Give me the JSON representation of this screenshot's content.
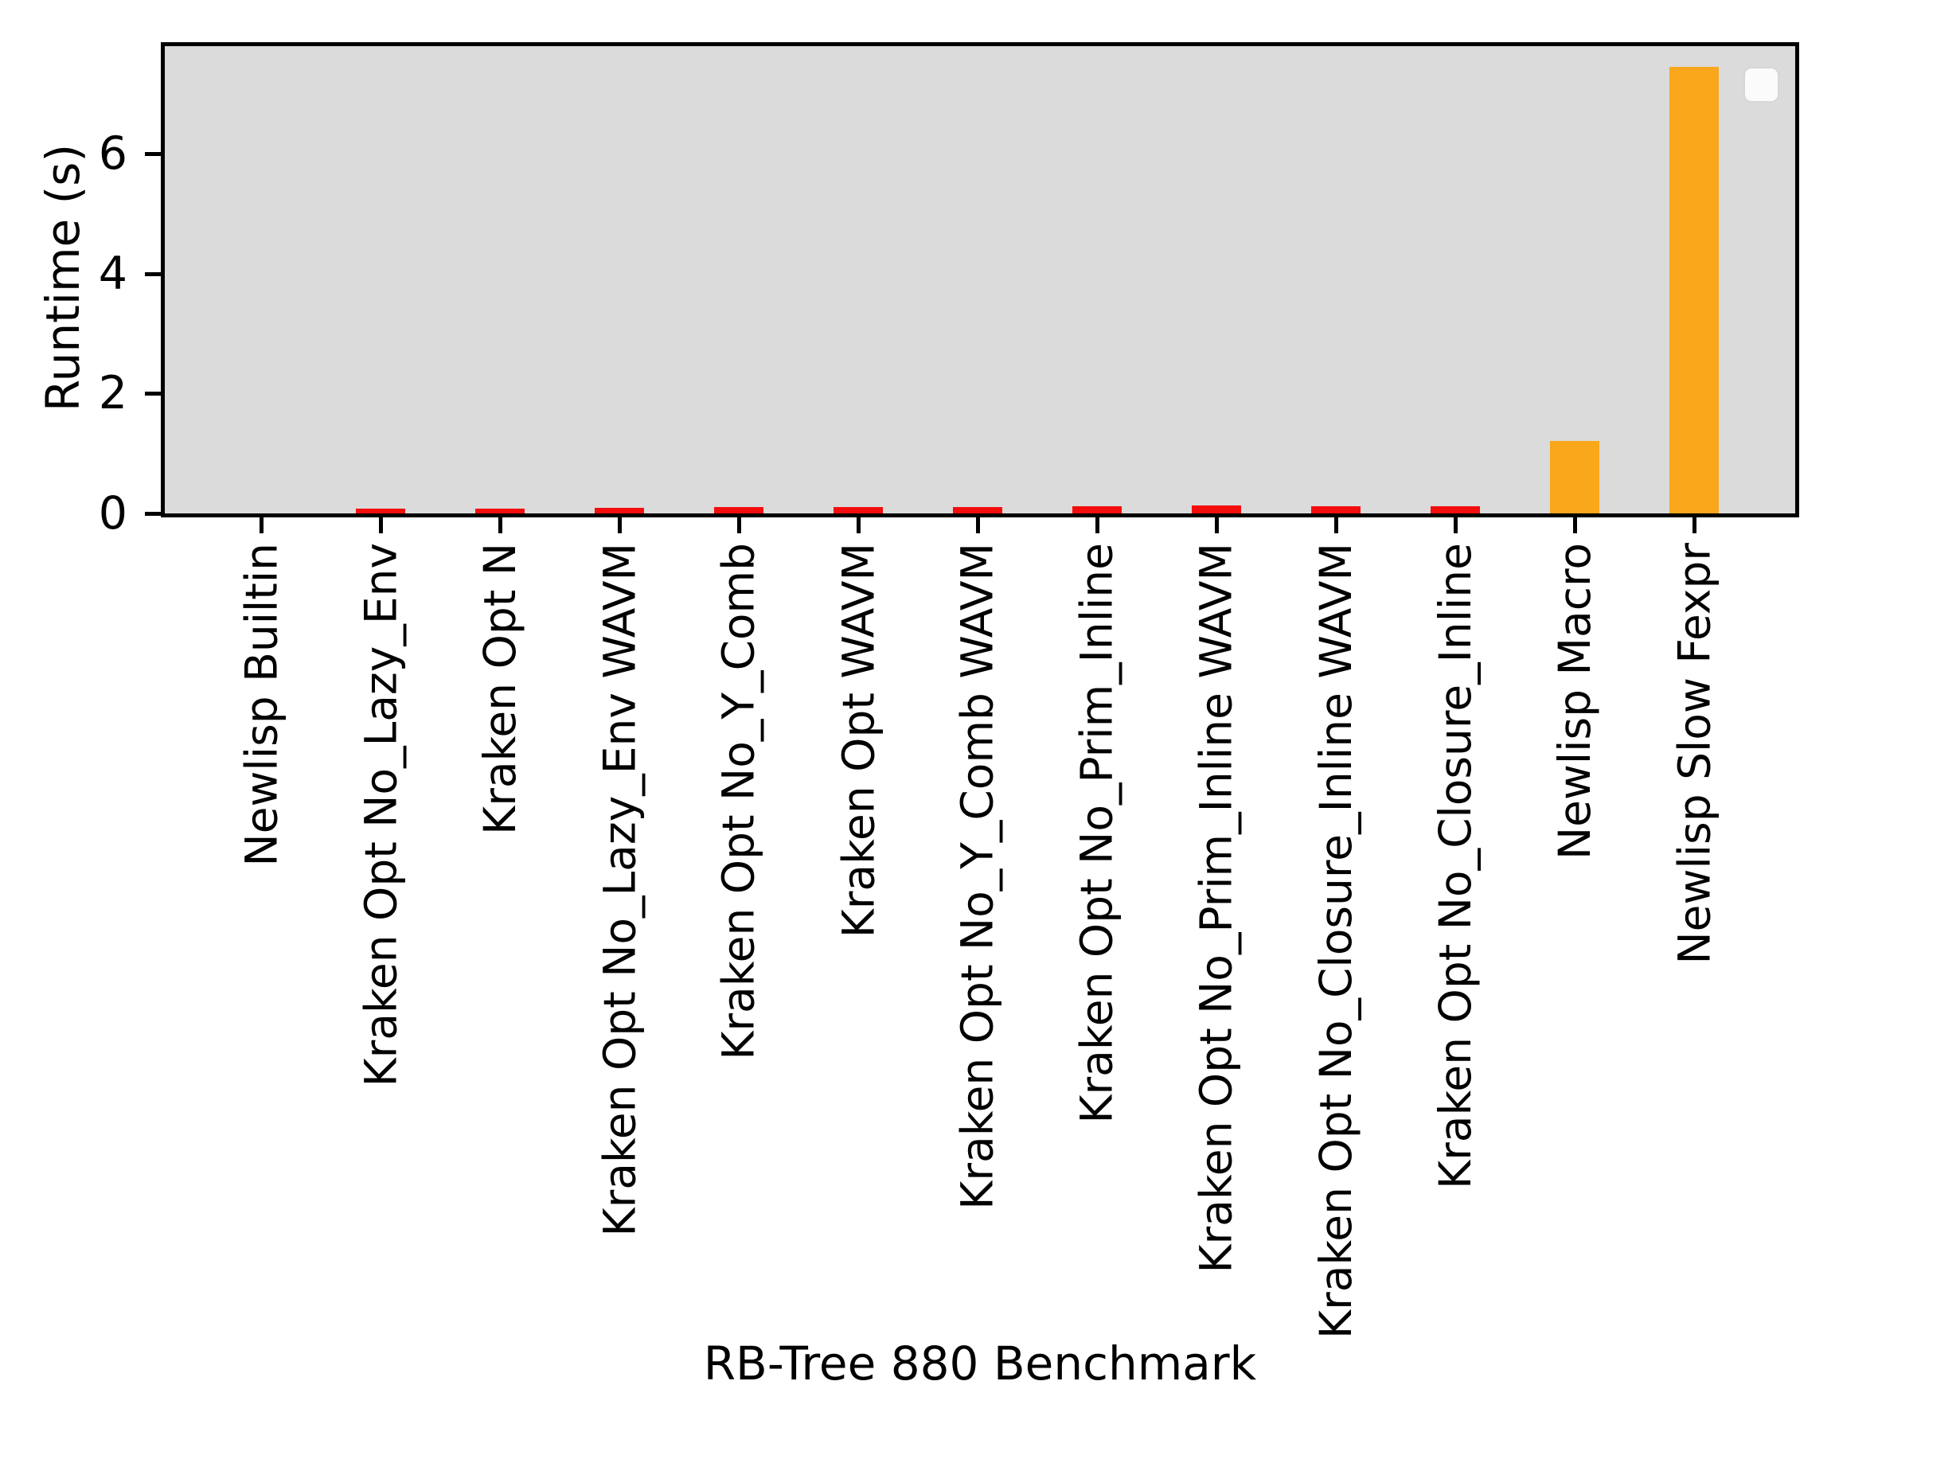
{
  "figure": {
    "background": "#FFFFFF",
    "plot_background": "#DBDBDB",
    "spine_color": "#000000",
    "tick_color": "#000000",
    "text_color": "#000000"
  },
  "chart_data": {
    "type": "bar",
    "title": "",
    "xlabel": "RB-Tree 880 Benchmark",
    "ylabel": "Runtime (s)",
    "categories": [
      "Newlisp Builtin",
      "Kraken Opt No_Lazy_Env",
      "Kraken Opt N",
      "Kraken Opt No_Lazy_Env WAVM",
      "Kraken Opt No_Y_Comb",
      "Kraken Opt WAVM",
      "Kraken Opt No_Y_Comb WAVM",
      "Kraken Opt No_Prim_Inline",
      "Kraken Opt No_Prim_Inline WAVM",
      "Kraken Opt No_Closure_Inline WAVM",
      "Kraken Opt No_Closure_Inline",
      "Newlisp Macro",
      "Newlisp Slow Fexpr"
    ],
    "values": [
      0.005,
      0.08,
      0.08,
      0.09,
      0.1,
      0.1,
      0.1,
      0.12,
      0.13,
      0.12,
      0.12,
      1.21,
      7.45
    ],
    "bar_colors": [
      "#F40D0D",
      "#F40D0D",
      "#F40D0D",
      "#F40D0D",
      "#F40D0D",
      "#F40D0D",
      "#F40D0D",
      "#F40D0D",
      "#F40D0D",
      "#F40D0D",
      "#F40D0D",
      "#F9A71B",
      "#F9A71B"
    ],
    "accent_red": "#F40D0D",
    "accent_orange": "#F9A71B",
    "yticks": [
      0,
      2,
      4,
      6
    ],
    "ylim": [
      0,
      7.85
    ],
    "xtick_label_rotation": 90,
    "grid": false,
    "legend": {
      "present": true,
      "position": "upper right",
      "entries": []
    }
  }
}
